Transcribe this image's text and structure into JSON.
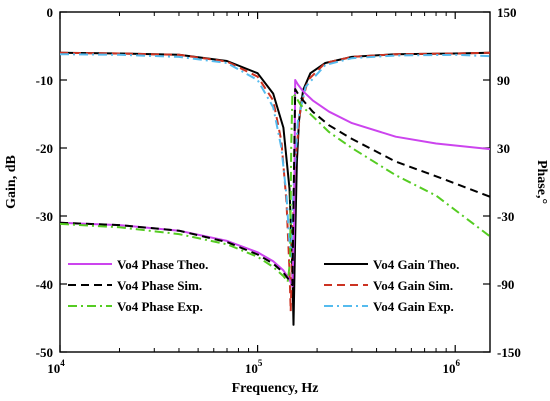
{
  "chart_data": {
    "type": "line",
    "xlabel": "Frequency, Hz",
    "ylabel_left": "Gain, dB",
    "ylabel_right": "Phase,°",
    "x_scale": "log",
    "xlim": [
      10000,
      1500000
    ],
    "ylim_left": [
      -50,
      0
    ],
    "ylim_right": [
      -150,
      150
    ],
    "x_ticks": [
      {
        "value": 10000,
        "base": "10",
        "exp": "4"
      },
      {
        "value": 100000,
        "base": "10",
        "exp": "5"
      },
      {
        "value": 1000000,
        "base": "10",
        "exp": "6"
      }
    ],
    "y_left_ticks": [
      "0",
      "-10",
      "-20",
      "-30",
      "-40",
      "-50"
    ],
    "y_right_ticks": [
      "150",
      "90",
      "30",
      "-30",
      "-90",
      "-150"
    ],
    "legend_left": [
      "Vo4 Phase Theo.",
      "Vo4 Phase Sim.",
      "Vo4 Phase Exp."
    ],
    "legend_right": [
      "Vo4 Gain Theo.",
      "Vo4 Gain Sim.",
      "Vo4 Gain Exp."
    ],
    "series": [
      {
        "name": "Vo4 Gain Theo.",
        "axis": "left",
        "color": "#000000",
        "dash": "solid",
        "x": [
          10000,
          20000,
          40000,
          70000,
          100000,
          120000,
          135000,
          145000,
          150000,
          152000,
          155000,
          158000,
          162000,
          170000,
          185000,
          220000,
          300000,
          500000,
          1000000,
          1500000
        ],
        "y": [
          -6,
          -6.1,
          -6.3,
          -7.2,
          -9,
          -12,
          -17,
          -26,
          -38,
          -46,
          -33,
          -22,
          -16,
          -11.5,
          -9,
          -7.5,
          -6.6,
          -6.2,
          -6.1,
          -6
        ]
      },
      {
        "name": "Vo4 Gain Sim.",
        "axis": "left",
        "color": "#cc3322",
        "dash": "dashed",
        "x": [
          10000,
          20000,
          40000,
          70000,
          100000,
          120000,
          132000,
          140000,
          145000,
          147000,
          150000,
          155000,
          165000,
          180000,
          220000,
          300000,
          500000,
          1000000,
          1500000
        ],
        "y": [
          -6,
          -6.1,
          -6.3,
          -7.3,
          -9.5,
          -13,
          -19,
          -28,
          -38,
          -44,
          -34,
          -22,
          -14,
          -10,
          -7.5,
          -6.6,
          -6.2,
          -6.1,
          -6
        ]
      },
      {
        "name": "Vo4 Gain Exp.",
        "axis": "left",
        "color": "#55bbee",
        "dash": "dashdot",
        "x": [
          10000,
          20000,
          40000,
          70000,
          100000,
          120000,
          132000,
          140000,
          145000,
          148000,
          152000,
          160000,
          175000,
          220000,
          300000,
          500000,
          1000000,
          1500000
        ],
        "y": [
          -6.2,
          -6.3,
          -6.6,
          -7.5,
          -10,
          -14,
          -20,
          -27,
          -34,
          -36,
          -26,
          -16,
          -11,
          -7.8,
          -6.8,
          -6.4,
          -6.3,
          -6.5
        ]
      },
      {
        "name": "Vo4 Phase Theo.",
        "axis": "right",
        "color": "#cc44ee",
        "dash": "solid",
        "x": [
          10000,
          20000,
          40000,
          70000,
          100000,
          120000,
          135000,
          145000,
          150000,
          153000,
          155000,
          160000,
          170000,
          190000,
          230000,
          300000,
          500000,
          800000,
          1500000
        ],
        "y": [
          -36,
          -38,
          -43,
          -52,
          -62,
          -70,
          -78,
          -86,
          -92,
          -40,
          90,
          86,
          80,
          72,
          62,
          52,
          40,
          34,
          29
        ]
      },
      {
        "name": "Vo4 Phase Sim.",
        "axis": "right",
        "color": "#000000",
        "dash": "dashed",
        "x": [
          10000,
          20000,
          40000,
          70000,
          100000,
          120000,
          135000,
          145000,
          150000,
          152000,
          155000,
          160000,
          170000,
          190000,
          230000,
          300000,
          500000,
          800000,
          1500000
        ],
        "y": [
          -36,
          -38,
          -43,
          -53,
          -64,
          -72,
          -80,
          -87,
          -91,
          -20,
          82,
          78,
          72,
          62,
          50,
          38,
          18,
          5,
          -13
        ]
      },
      {
        "name": "Vo4 Phase Exp.",
        "axis": "right",
        "color": "#55cc22",
        "dash": "dashdot",
        "x": [
          10000,
          20000,
          40000,
          70000,
          100000,
          120000,
          135000,
          142000,
          146000,
          148000,
          150000,
          155000,
          165000,
          190000,
          230000,
          300000,
          500000,
          800000,
          1500000
        ],
        "y": [
          -37,
          -40,
          -46,
          -55,
          -66,
          -75,
          -83,
          -88,
          -70,
          30,
          78,
          76,
          68,
          58,
          44,
          30,
          6,
          -12,
          -48
        ]
      }
    ]
  }
}
